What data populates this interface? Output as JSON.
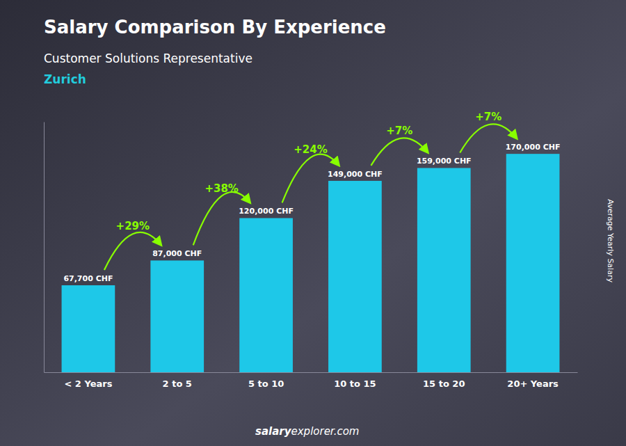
{
  "chart_data": {
    "type": "bar",
    "title": "Salary Comparison By Experience",
    "subtitle": "Customer Solutions Representative",
    "city": "Zurich",
    "categories": [
      "< 2 Years",
      "2 to 5",
      "5 to 10",
      "10 to 15",
      "15 to 20",
      "20+ Years"
    ],
    "values": [
      67700,
      87000,
      120000,
      149000,
      159000,
      170000
    ],
    "value_labels": [
      "67,700 CHF",
      "87,000 CHF",
      "120,000 CHF",
      "149,000 CHF",
      "159,000 CHF",
      "170,000 CHF"
    ],
    "data_labels": true,
    "annotations": [
      "+29%",
      "+38%",
      "+24%",
      "+7%",
      "+7%"
    ],
    "color": "#1ec8e8",
    "ylim": [
      0,
      195000
    ],
    "y_label": "Average Yearly Salary",
    "tick_labels": "x",
    "watermark": [
      "salary",
      "explorer.com"
    ]
  }
}
